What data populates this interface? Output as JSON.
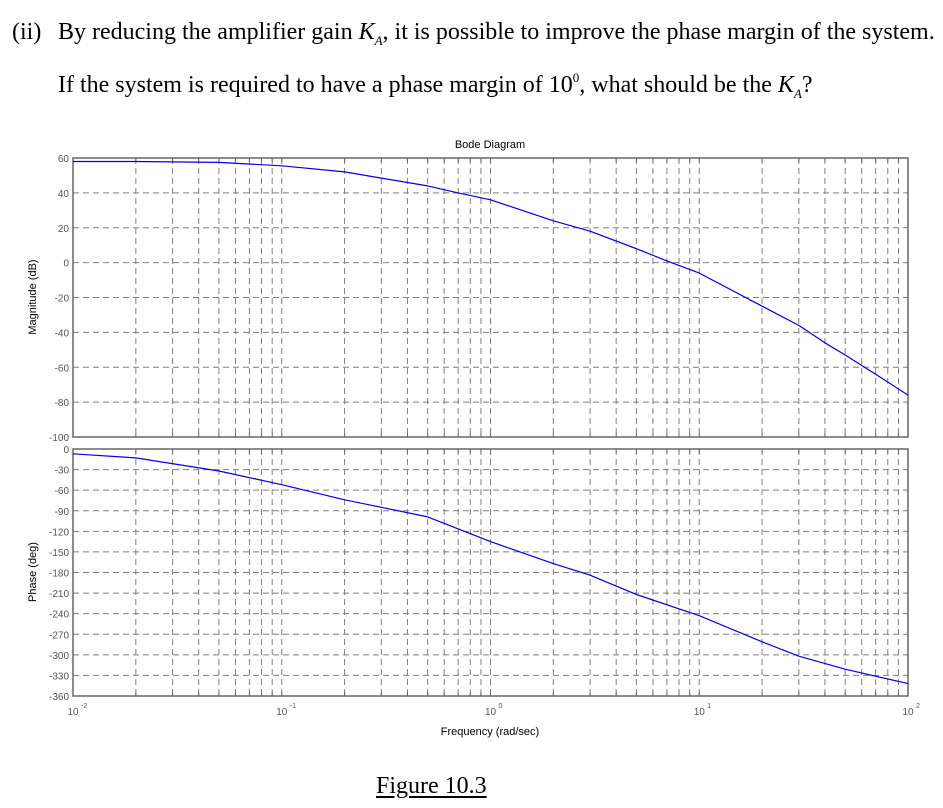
{
  "question": {
    "label": "(ii)",
    "line1_prefix": "By reducing the amplifier gain ",
    "gain_symbol": "K",
    "gain_subscript": "A",
    "line1_suffix": ", it is possible to improve the phase margin of the system.",
    "line2_prefix": "If the system is required to have a phase margin of 10",
    "degree_sup": "0",
    "line2_mid": ", what should be the ",
    "line2_suffix": "?"
  },
  "caption": "Figure 10.3",
  "colors": {
    "curve": "#0000ee",
    "grid": "#7f7f7f",
    "axis": "#666666",
    "tick_text": "#555555"
  },
  "chart_data": {
    "type": "line",
    "title": "Bode Diagram",
    "xlabel": "Frequency (rad/sec)",
    "xscale": "log",
    "xlim": [
      0.01,
      100
    ],
    "x_ticks": [
      "10^-2",
      "10^-1",
      "10^0",
      "10^1",
      "10^2"
    ],
    "grid": true,
    "subplots": [
      {
        "name": "magnitude",
        "ylabel": "Magnitude (dB)",
        "ylim": [
          -100,
          60
        ],
        "y_ticks": [
          60,
          40,
          20,
          0,
          -20,
          -40,
          -60,
          -80,
          -100
        ],
        "series": [
          {
            "name": "Magnitude",
            "x": [
              0.01,
              0.02,
              0.05,
              0.1,
              0.2,
              0.3,
              0.5,
              0.7,
              1,
              2,
              3,
              5,
              7,
              10,
              20,
              30,
              40,
              50,
              70,
              100
            ],
            "y": [
              58,
              58,
              57.5,
              55.5,
              52,
              48.5,
              44,
              40,
              36,
              24,
              18,
              8,
              1,
              -6,
              -25,
              -36,
              -46,
              -53,
              -64,
              -76
            ]
          }
        ]
      },
      {
        "name": "phase",
        "ylabel": "Phase (deg)",
        "ylim": [
          -360,
          0
        ],
        "y_ticks": [
          0,
          -30,
          -60,
          -90,
          -120,
          -150,
          -180,
          -210,
          -240,
          -270,
          -300,
          -330,
          -360
        ],
        "series": [
          {
            "name": "Phase",
            "x": [
              0.01,
              0.02,
              0.05,
              0.1,
              0.2,
              0.3,
              0.5,
              1,
              2,
              3,
              5,
              10,
              20,
              30,
              50,
              100
            ],
            "y": [
              -7,
              -13,
              -32,
              -52,
              -74,
              -85,
              -99,
              -135,
              -167,
              -184,
              -212,
              -243,
              -281,
              -302,
              -321,
              -342
            ]
          }
        ]
      }
    ]
  }
}
